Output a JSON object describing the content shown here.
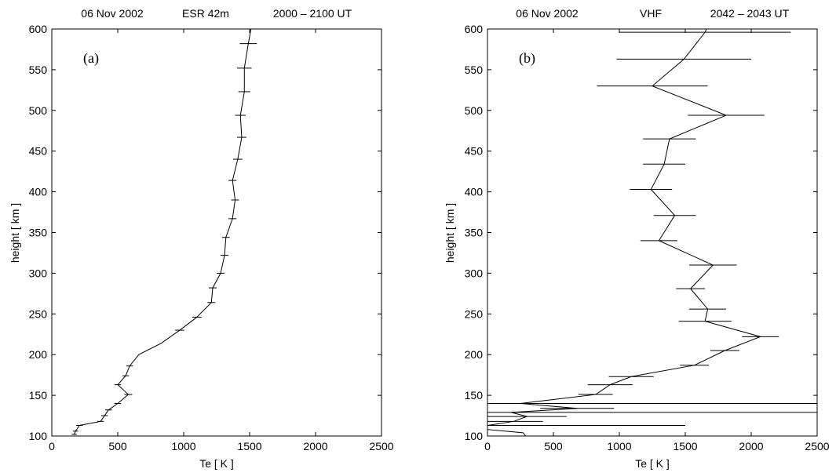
{
  "chart_data": [
    {
      "type": "line",
      "panel_label": "(a)",
      "header": {
        "date": "06 Nov 2002",
        "instrument": "ESR 42m",
        "time": "2000 – 2100 UT"
      },
      "xlabel": "Te  [ K ]",
      "ylabel": "height  [ km ]",
      "xlim": [
        0,
        2500
      ],
      "ylim": [
        100,
        600
      ],
      "xticks": [
        0,
        500,
        1000,
        1500,
        2000,
        2500
      ],
      "yticks": [
        100,
        150,
        200,
        250,
        300,
        350,
        400,
        450,
        500,
        550,
        600
      ],
      "grid": false,
      "legend": "none",
      "series": [
        {
          "points": [
            {
              "x": 170,
              "y": 102,
              "err": 20
            },
            {
              "x": 180,
              "y": 106,
              "err": 20
            },
            {
              "x": 210,
              "y": 113,
              "err": 25
            },
            {
              "x": 370,
              "y": 118,
              "err": 25
            },
            {
              "x": 400,
              "y": 125,
              "err": 25
            },
            {
              "x": 430,
              "y": 132,
              "err": 25
            },
            {
              "x": 500,
              "y": 140,
              "err": 25
            },
            {
              "x": 580,
              "y": 151,
              "err": 30
            },
            {
              "x": 500,
              "y": 163,
              "err": 25
            },
            {
              "x": 560,
              "y": 174,
              "err": 25
            },
            {
              "x": 590,
              "y": 186,
              "err": 25
            },
            {
              "x": 660,
              "y": 200,
              "err": 0
            },
            {
              "x": 830,
              "y": 214,
              "err": 0
            },
            {
              "x": 970,
              "y": 230,
              "err": 35
            },
            {
              "x": 1100,
              "y": 246,
              "err": 35
            },
            {
              "x": 1210,
              "y": 264,
              "err": 30
            },
            {
              "x": 1220,
              "y": 282,
              "err": 30
            },
            {
              "x": 1280,
              "y": 300,
              "err": 30
            },
            {
              "x": 1310,
              "y": 322,
              "err": 30
            },
            {
              "x": 1320,
              "y": 344,
              "err": 30
            },
            {
              "x": 1370,
              "y": 367,
              "err": 30
            },
            {
              "x": 1390,
              "y": 390,
              "err": 30
            },
            {
              "x": 1370,
              "y": 414,
              "err": 30
            },
            {
              "x": 1410,
              "y": 440,
              "err": 35
            },
            {
              "x": 1440,
              "y": 467,
              "err": 35
            },
            {
              "x": 1430,
              "y": 494,
              "err": 40
            },
            {
              "x": 1460,
              "y": 523,
              "err": 45
            },
            {
              "x": 1460,
              "y": 552,
              "err": 55
            },
            {
              "x": 1490,
              "y": 582,
              "err": 65
            },
            {
              "x": 1510,
              "y": 600,
              "err": 0
            }
          ]
        }
      ]
    },
    {
      "type": "line",
      "panel_label": "(b)",
      "header": {
        "date": "06 Nov 2002",
        "instrument": "VHF",
        "time": "2042 – 2043 UT"
      },
      "xlabel": "Te  [ K ]",
      "ylabel": "height  [ km ]",
      "xlim": [
        0,
        2500
      ],
      "ylim": [
        100,
        600
      ],
      "xticks": [
        0,
        500,
        1000,
        1500,
        2000,
        2500
      ],
      "yticks": [
        100,
        150,
        200,
        250,
        300,
        350,
        400,
        450,
        500,
        550,
        600
      ],
      "grid": false,
      "legend": "none",
      "series": [
        {
          "points": [
            {
              "x": 290,
              "y": 95,
              "err": 0
            },
            {
              "x": 270,
              "y": 104,
              "err": 0
            },
            {
              "x": 0,
              "y": 108,
              "err": 0
            },
            {
              "x": 0,
              "y": 113,
              "err": 1500
            },
            {
              "x": 200,
              "y": 118,
              "err": 220
            },
            {
              "x": 300,
              "y": 124,
              "err": 300
            },
            {
              "x": 180,
              "y": 129,
              "err": 2600
            },
            {
              "x": 680,
              "y": 134,
              "err": 280
            },
            {
              "x": 250,
              "y": 140,
              "err": 2600
            },
            {
              "x": 820,
              "y": 151,
              "err": 130
            },
            {
              "x": 930,
              "y": 163,
              "err": 170
            },
            {
              "x": 1090,
              "y": 173,
              "err": 170
            },
            {
              "x": 1570,
              "y": 187,
              "err": 110
            },
            {
              "x": 1800,
              "y": 205,
              "err": 110
            },
            {
              "x": 2070,
              "y": 222,
              "err": 140
            },
            {
              "x": 1650,
              "y": 241,
              "err": 200
            },
            {
              "x": 1670,
              "y": 256,
              "err": 140
            },
            {
              "x": 1540,
              "y": 281,
              "err": 110
            },
            {
              "x": 1710,
              "y": 310,
              "err": 180
            },
            {
              "x": 1300,
              "y": 340,
              "err": 140
            },
            {
              "x": 1420,
              "y": 371,
              "err": 160
            },
            {
              "x": 1240,
              "y": 403,
              "err": 160
            },
            {
              "x": 1340,
              "y": 434,
              "err": 160
            },
            {
              "x": 1380,
              "y": 465,
              "err": 200
            },
            {
              "x": 1810,
              "y": 494,
              "err": 290
            },
            {
              "x": 1250,
              "y": 530,
              "err": 420
            },
            {
              "x": 1490,
              "y": 563,
              "err": 510
            },
            {
              "x": 1650,
              "y": 596,
              "err": 650
            },
            {
              "x": 1660,
              "y": 600,
              "err": 0
            }
          ]
        }
      ]
    }
  ]
}
